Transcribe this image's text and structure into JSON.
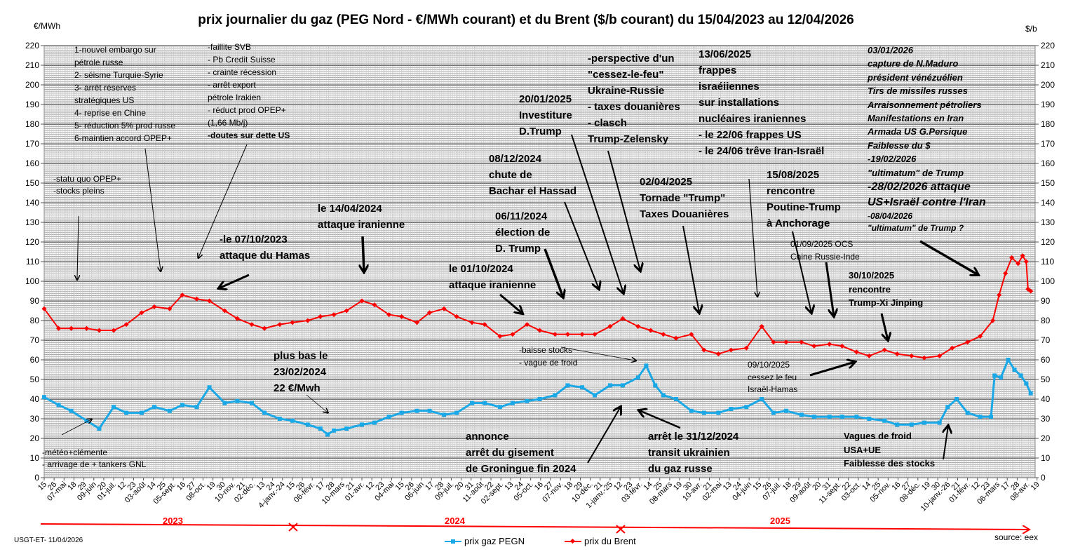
{
  "chart_data": {
    "type": "line",
    "title": "prix journalier du gaz (PEG Nord - €/MWh courant) et du Brent ($/b courant) du  15/04/2023  au  12/04/2026",
    "ylabel_left": "€/MWh",
    "ylabel_right": "$/b",
    "ylim": [
      0,
      220
    ],
    "yticks": [
      0,
      10,
      20,
      30,
      40,
      50,
      60,
      70,
      80,
      90,
      100,
      110,
      120,
      130,
      140,
      150,
      160,
      170,
      180,
      190,
      200,
      210,
      220
    ],
    "grid": true,
    "legend_position": "bottom",
    "x_tick_labels": [
      "15",
      "26",
      "07-mai",
      "18",
      "29",
      "09-juin",
      "20",
      "01-juil.",
      "12",
      "23",
      "03-août",
      "14",
      "25",
      "05-sept.",
      "16",
      "27",
      "08-oct.",
      "19",
      "30",
      "10-nov.",
      "21",
      "02-déc.",
      "13",
      "24",
      "4-janv.-24",
      "15",
      "26",
      "06-févr.",
      "17",
      "28",
      "10-mars",
      "21",
      "01-avr.",
      "12",
      "23",
      "04-mai",
      "15",
      "26",
      "06-juin",
      "17",
      "28",
      "09-juil.",
      "20",
      "31",
      "11-août",
      "22",
      "02-sept.",
      "13",
      "24",
      "05-oct.",
      "16",
      "27",
      "07-nov.",
      "18",
      "29",
      "10-déc.",
      "21",
      "1-janv.-25",
      "12",
      "23",
      "03-févr.",
      "14",
      "25",
      "08-mars",
      "19",
      "30",
      "10-avr.",
      "21",
      "02-mai",
      "13",
      "24",
      "04-juin",
      "15",
      "26",
      "07-juil.",
      "18",
      "29",
      "09-août",
      "20",
      "31",
      "11-sept.",
      "22",
      "03-oct.",
      "14",
      "25",
      "05-nov.",
      "16",
      "27",
      "08-déc.",
      "19",
      "30",
      "10-janv.-26",
      "21",
      "01-févr.",
      "12",
      "23",
      "06-mars",
      "17",
      "28",
      "08-avr.",
      "19"
    ],
    "years": [
      "2023",
      "2024",
      "2025"
    ],
    "series": [
      {
        "name": "prix gaz PEGN",
        "color": "#1aa8e6",
        "marker": "square",
        "points": [
          [
            "2023-04-15",
            41
          ],
          [
            "2023-05-01",
            37
          ],
          [
            "2023-05-15",
            34
          ],
          [
            "2023-06-01",
            29
          ],
          [
            "2023-06-15",
            25
          ],
          [
            "2023-07-01",
            36
          ],
          [
            "2023-07-15",
            33
          ],
          [
            "2023-08-01",
            33
          ],
          [
            "2023-08-15",
            36
          ],
          [
            "2023-09-01",
            34
          ],
          [
            "2023-09-15",
            37
          ],
          [
            "2023-10-01",
            36
          ],
          [
            "2023-10-15",
            46
          ],
          [
            "2023-11-01",
            38
          ],
          [
            "2023-11-15",
            39
          ],
          [
            "2023-12-01",
            38
          ],
          [
            "2023-12-15",
            33
          ],
          [
            "2024-01-01",
            30
          ],
          [
            "2024-01-15",
            29
          ],
          [
            "2024-02-01",
            27
          ],
          [
            "2024-02-15",
            25
          ],
          [
            "2024-02-23",
            22
          ],
          [
            "2024-03-01",
            24
          ],
          [
            "2024-03-15",
            25
          ],
          [
            "2024-04-01",
            27
          ],
          [
            "2024-04-15",
            28
          ],
          [
            "2024-05-01",
            31
          ],
          [
            "2024-05-15",
            33
          ],
          [
            "2024-06-01",
            34
          ],
          [
            "2024-06-15",
            34
          ],
          [
            "2024-07-01",
            32
          ],
          [
            "2024-07-15",
            33
          ],
          [
            "2024-08-01",
            38
          ],
          [
            "2024-08-15",
            38
          ],
          [
            "2024-09-01",
            36
          ],
          [
            "2024-09-15",
            38
          ],
          [
            "2024-10-01",
            39
          ],
          [
            "2024-10-15",
            40
          ],
          [
            "2024-11-01",
            42
          ],
          [
            "2024-11-15",
            47
          ],
          [
            "2024-12-01",
            46
          ],
          [
            "2024-12-15",
            42
          ],
          [
            "2025-01-01",
            47
          ],
          [
            "2025-01-15",
            47
          ],
          [
            "2025-02-01",
            51
          ],
          [
            "2025-02-10",
            57
          ],
          [
            "2025-02-20",
            47
          ],
          [
            "2025-03-01",
            42
          ],
          [
            "2025-03-15",
            40
          ],
          [
            "2025-04-01",
            34
          ],
          [
            "2025-04-15",
            33
          ],
          [
            "2025-05-01",
            33
          ],
          [
            "2025-05-15",
            35
          ],
          [
            "2025-06-01",
            36
          ],
          [
            "2025-06-18",
            40
          ],
          [
            "2025-07-01",
            33
          ],
          [
            "2025-07-15",
            34
          ],
          [
            "2025-08-01",
            32
          ],
          [
            "2025-08-15",
            31
          ],
          [
            "2025-09-01",
            31
          ],
          [
            "2025-09-15",
            31
          ],
          [
            "2025-10-01",
            31
          ],
          [
            "2025-10-15",
            30
          ],
          [
            "2025-11-01",
            29
          ],
          [
            "2025-11-15",
            27
          ],
          [
            "2025-12-01",
            27
          ],
          [
            "2025-12-15",
            28
          ],
          [
            "2026-01-01",
            28
          ],
          [
            "2026-01-10",
            36
          ],
          [
            "2026-01-20",
            40
          ],
          [
            "2026-02-01",
            33
          ],
          [
            "2026-02-15",
            31
          ],
          [
            "2026-02-27",
            31
          ],
          [
            "2026-03-03",
            52
          ],
          [
            "2026-03-10",
            51
          ],
          [
            "2026-03-18",
            60
          ],
          [
            "2026-03-25",
            55
          ],
          [
            "2026-04-01",
            52
          ],
          [
            "2026-04-07",
            48
          ],
          [
            "2026-04-12",
            43
          ]
        ]
      },
      {
        "name": "prix du Brent",
        "color": "#ff0000",
        "marker": "diamond",
        "points": [
          [
            "2023-04-15",
            86
          ],
          [
            "2023-05-01",
            76
          ],
          [
            "2023-05-15",
            76
          ],
          [
            "2023-06-01",
            76
          ],
          [
            "2023-06-15",
            75
          ],
          [
            "2023-07-01",
            75
          ],
          [
            "2023-07-15",
            78
          ],
          [
            "2023-08-01",
            84
          ],
          [
            "2023-08-15",
            87
          ],
          [
            "2023-09-01",
            86
          ],
          [
            "2023-09-15",
            93
          ],
          [
            "2023-10-01",
            91
          ],
          [
            "2023-10-15",
            90
          ],
          [
            "2023-11-01",
            85
          ],
          [
            "2023-11-15",
            81
          ],
          [
            "2023-12-01",
            78
          ],
          [
            "2023-12-15",
            76
          ],
          [
            "2024-01-01",
            78
          ],
          [
            "2024-01-15",
            79
          ],
          [
            "2024-02-01",
            80
          ],
          [
            "2024-02-15",
            82
          ],
          [
            "2024-03-01",
            83
          ],
          [
            "2024-03-15",
            85
          ],
          [
            "2024-04-01",
            90
          ],
          [
            "2024-04-15",
            88
          ],
          [
            "2024-05-01",
            83
          ],
          [
            "2024-05-15",
            82
          ],
          [
            "2024-06-01",
            79
          ],
          [
            "2024-06-15",
            84
          ],
          [
            "2024-07-01",
            86
          ],
          [
            "2024-07-15",
            82
          ],
          [
            "2024-08-01",
            79
          ],
          [
            "2024-08-15",
            78
          ],
          [
            "2024-09-01",
            72
          ],
          [
            "2024-09-15",
            73
          ],
          [
            "2024-10-01",
            78
          ],
          [
            "2024-10-15",
            75
          ],
          [
            "2024-11-01",
            73
          ],
          [
            "2024-11-15",
            73
          ],
          [
            "2024-12-01",
            73
          ],
          [
            "2024-12-15",
            73
          ],
          [
            "2025-01-01",
            77
          ],
          [
            "2025-01-15",
            81
          ],
          [
            "2025-02-01",
            77
          ],
          [
            "2025-02-15",
            75
          ],
          [
            "2025-03-01",
            73
          ],
          [
            "2025-03-15",
            71
          ],
          [
            "2025-04-01",
            73
          ],
          [
            "2025-04-15",
            65
          ],
          [
            "2025-05-01",
            63
          ],
          [
            "2025-05-15",
            65
          ],
          [
            "2025-06-01",
            66
          ],
          [
            "2025-06-18",
            77
          ],
          [
            "2025-07-01",
            69
          ],
          [
            "2025-07-15",
            69
          ],
          [
            "2025-08-01",
            69
          ],
          [
            "2025-08-15",
            67
          ],
          [
            "2025-09-01",
            68
          ],
          [
            "2025-09-15",
            67
          ],
          [
            "2025-10-01",
            64
          ],
          [
            "2025-10-15",
            62
          ],
          [
            "2025-11-01",
            65
          ],
          [
            "2025-11-15",
            63
          ],
          [
            "2025-12-01",
            62
          ],
          [
            "2025-12-15",
            61
          ],
          [
            "2026-01-01",
            62
          ],
          [
            "2026-01-15",
            66
          ],
          [
            "2026-02-01",
            69
          ],
          [
            "2026-02-15",
            72
          ],
          [
            "2026-03-01",
            80
          ],
          [
            "2026-03-08",
            93
          ],
          [
            "2026-03-15",
            104
          ],
          [
            "2026-03-22",
            112
          ],
          [
            "2026-03-29",
            109
          ],
          [
            "2026-04-03",
            113
          ],
          [
            "2026-04-07",
            110
          ],
          [
            "2026-04-09",
            96
          ],
          [
            "2026-04-12",
            95
          ]
        ]
      }
    ],
    "annotations": [
      {
        "lines": [
          "1-nouvel embargo sur",
          "pétrole russe",
          "2- séisme Turquie-Syrie",
          "3- arrêt réserves",
          "stratégiques US",
          "4- reprise en Chine",
          "5- réduction 5% prod russe",
          "6-maintien accord OPEP+"
        ]
      },
      {
        "lines": [
          "-faillite SVB",
          "- Pb Credit Suisse",
          "- crainte récession",
          "- arrêt export",
          "pétrole Irakien",
          "- réduct prod OPEP+",
          "(1,66 Mb/j)",
          "-doutes sur dette US"
        ]
      },
      {
        "lines": [
          "-statu quo OPEP+",
          "-stocks pleins"
        ]
      },
      {
        "lines": [
          "-le 07/10/2023",
          "attaque du Hamas"
        ]
      },
      {
        "lines": [
          "le 14/04/2024",
          "attaque iranienne"
        ]
      },
      {
        "lines": [
          "le 01/10/2024",
          "attaque iranienne"
        ]
      },
      {
        "lines": [
          "06/11/2024",
          "élection de",
          "D. Trump"
        ]
      },
      {
        "lines": [
          "08/12/2024",
          "chute de",
          "Bachar el Hassad"
        ]
      },
      {
        "lines": [
          "20/01/2025",
          "Investiture",
          "D.Trump"
        ]
      },
      {
        "lines": [
          "-perspective d'un",
          "\"cessez-le-feu\"",
          "Ukraine-Russie",
          "- taxes douanières",
          "- clasch",
          "Trump-Zelensky"
        ]
      },
      {
        "lines": [
          "13/06/2025",
          "frappes",
          "israéiiennes",
          "sur installations",
          "nucléaires iraniennes",
          "- le 22/06 frappes US",
          "- le 24/06 trêve Iran-Israël"
        ]
      },
      {
        "lines": [
          "02/04/2025",
          "Tornade \"Trump\"",
          "Taxes Douanières"
        ]
      },
      {
        "lines": [
          "15/08/2025",
          "rencontre",
          "Poutine-Trump",
          "à Anchorage"
        ]
      },
      {
        "lines": [
          "01/09/2025  OCS",
          "Chine  Russie-Inde"
        ]
      },
      {
        "lines": [
          "30/10/2025",
          "rencontre",
          "Trump-Xi Jinping"
        ]
      },
      {
        "lines": [
          "03/01/2026",
          "capture de N.Maduro",
          "président vénézuélien",
          "Tirs de missiles russes",
          "Arraisonnement  pétroliers",
          "Manifestations en Iran",
          "Armada US  G.Persique",
          "Faiblesse du $",
          "-19/02/2026",
          "\"ultimatum\" de Trump",
          "-28/02/2026  attaque",
          "US+Israël  contre l'Iran",
          "-08/04/2026",
          "\"ultimatum\" de Trump ?"
        ]
      },
      {
        "lines": [
          "-baisse  stocks",
          "- vague de froid"
        ]
      },
      {
        "lines": [
          "plus bas le",
          "23/02/2024",
          "22 €/Mwh"
        ]
      },
      {
        "lines": [
          "09/10/2025",
          "cessez le feu",
          "Israël-Hamas"
        ]
      },
      {
        "lines": [
          "-météo+clémente",
          "- arrivage de + tankers GNL"
        ]
      },
      {
        "lines": [
          "annonce",
          "arrêt du gisement",
          "de Groningue fin 2024"
        ]
      },
      {
        "lines": [
          "arrêt le 31/12/2024",
          "transit ukrainien",
          "du gaz russe"
        ]
      },
      {
        "lines": [
          "Vagues de froid",
          "USA+UE",
          "Faiblesse des stocks"
        ]
      }
    ]
  },
  "footer": {
    "author": "USGT-ET- 11/04/2026",
    "source": "source: eex"
  }
}
